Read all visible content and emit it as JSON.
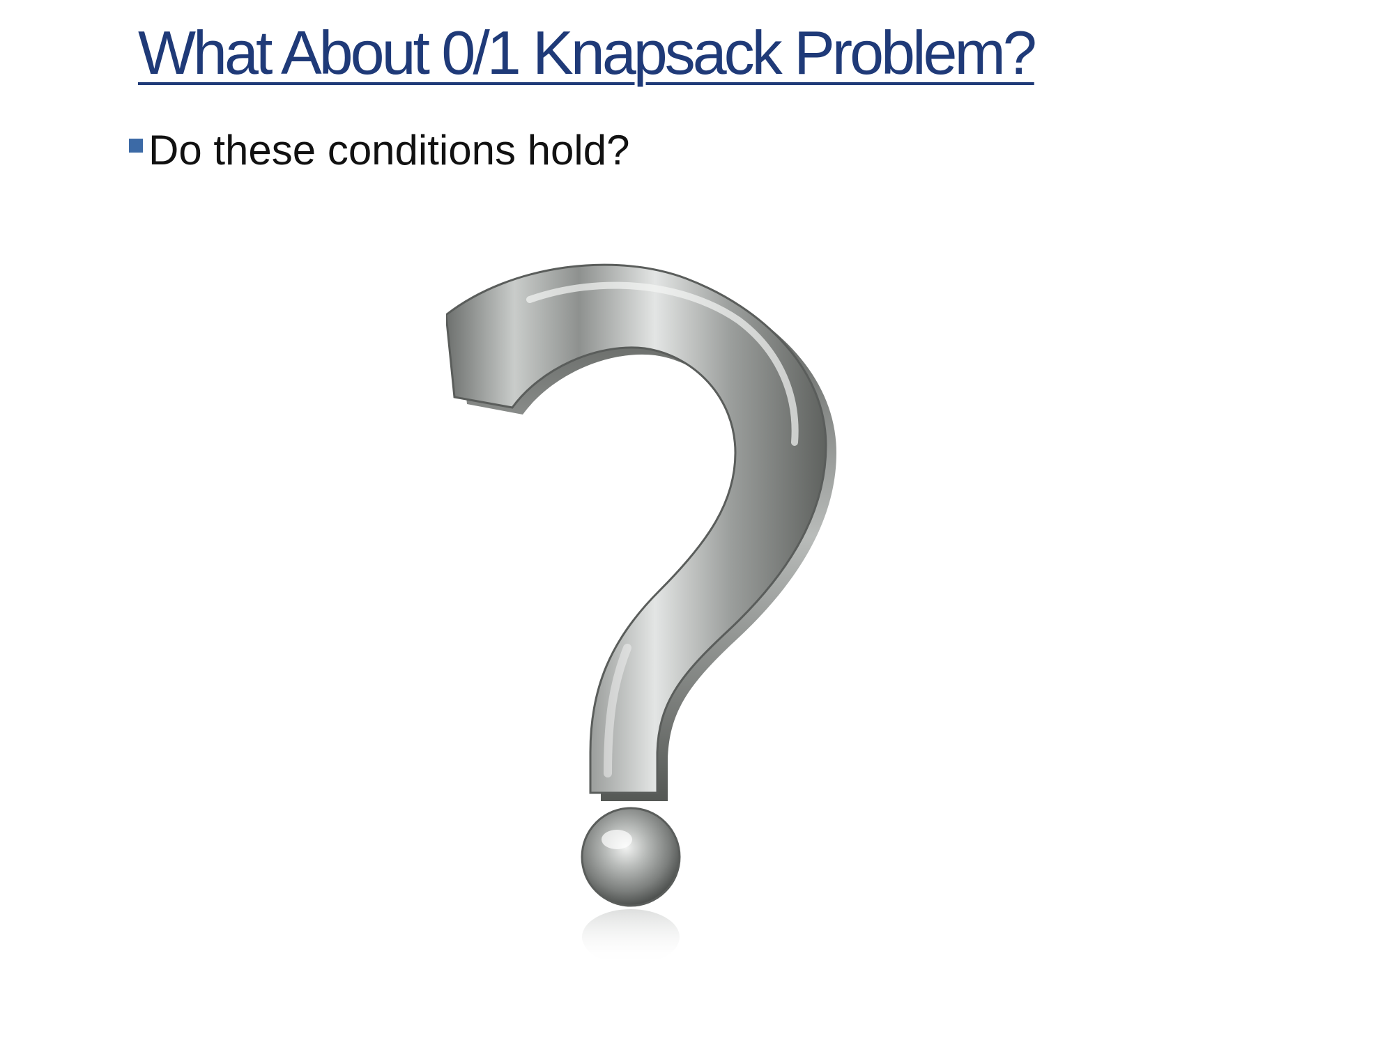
{
  "slide": {
    "title": "What About 0/1 Knapsack Problem?",
    "bullets": [
      {
        "text": "Do these conditions hold?"
      }
    ],
    "image": {
      "icon": "question-mark-icon",
      "description_color": "#9a9d9c",
      "accent_color": "#1f3a78",
      "bullet_color": "#3c6aa6"
    }
  }
}
